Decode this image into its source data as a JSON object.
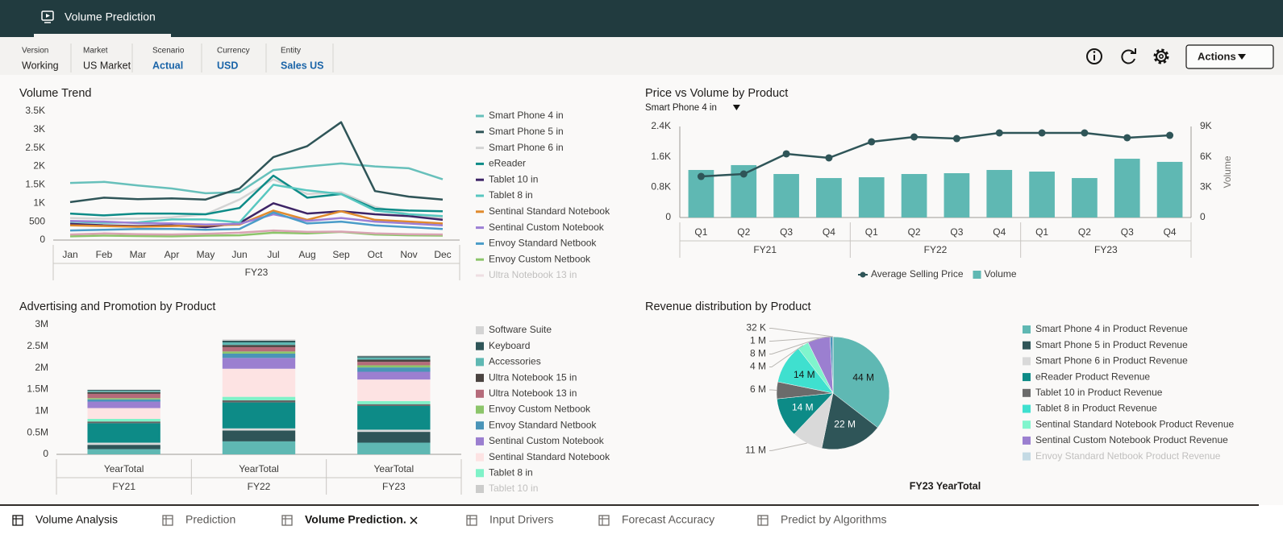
{
  "header": {
    "title": "Volume Prediction"
  },
  "pov": [
    {
      "label": "Version",
      "value": "Working"
    },
    {
      "label": "Market",
      "value": "US Market"
    },
    {
      "label": "Scenario",
      "value": "Actual"
    },
    {
      "label": "Currency",
      "value": "USD"
    },
    {
      "label": "Entity",
      "value": "Sales US"
    }
  ],
  "toolbar": {
    "actions": "Actions"
  },
  "chart_data": [
    {
      "type": "line",
      "title": "Volume Trend",
      "categories": [
        "Jan",
        "Feb",
        "Mar",
        "Apr",
        "May",
        "Jun",
        "Jul",
        "Aug",
        "Sep",
        "Oct",
        "Nov",
        "Dec"
      ],
      "x_groups": [
        "FY23"
      ],
      "ylim": [
        0,
        3500
      ],
      "yticks": [
        0,
        500,
        {
          "value": 1000,
          "label": "1K"
        },
        {
          "value": 1500,
          "label": "1.5K"
        },
        {
          "value": 2000,
          "label": "2K"
        },
        {
          "value": 2500,
          "label": "2.5K"
        },
        {
          "value": 3000,
          "label": "3K"
        },
        {
          "value": 3500,
          "label": "3.5K"
        }
      ],
      "grid": false,
      "series": [
        {
          "name": "Smart Phone 4 in",
          "color": "#67c0bb",
          "values": [
            1550,
            1580,
            1480,
            1400,
            1270,
            1300,
            1900,
            2000,
            2080,
            2000,
            1950,
            1650
          ]
        },
        {
          "name": "Smart Phone 5 in",
          "color": "#2f5558",
          "values": [
            1030,
            1150,
            1110,
            1130,
            1100,
            1400,
            2250,
            2550,
            3200,
            1330,
            1180,
            1100
          ]
        },
        {
          "name": "Smart Phone 6 in",
          "color": "#d4d4d4",
          "values": [
            600,
            580,
            580,
            620,
            700,
            1100,
            1650,
            1250,
            1300,
            900,
            700,
            600
          ]
        },
        {
          "name": "eReader",
          "color": "#0d8b87",
          "values": [
            720,
            670,
            720,
            720,
            700,
            870,
            1750,
            1150,
            1250,
            850,
            800,
            780
          ]
        },
        {
          "name": "Tablet 10 in",
          "color": "#3d2466",
          "values": [
            440,
            400,
            380,
            400,
            350,
            460,
            1000,
            720,
            780,
            700,
            650,
            550
          ]
        },
        {
          "name": "Tablet 8 in",
          "color": "#58c7c0",
          "values": [
            500,
            470,
            480,
            560,
            560,
            480,
            1500,
            1350,
            1250,
            800,
            700,
            650
          ]
        },
        {
          "name": "Sentinal Standard Notebook",
          "color": "#e08a2c",
          "values": [
            400,
            380,
            360,
            380,
            400,
            420,
            800,
            550,
            780,
            550,
            500,
            450
          ]
        },
        {
          "name": "Sentinal Custom Notebook",
          "color": "#9d7fd5",
          "values": [
            520,
            500,
            460,
            450,
            420,
            440,
            700,
            520,
            600,
            500,
            450,
            400
          ]
        },
        {
          "name": "Envoy Standard Netbook",
          "color": "#4a9cc8",
          "values": [
            260,
            280,
            300,
            300,
            280,
            300,
            750,
            450,
            500,
            400,
            350,
            300
          ]
        },
        {
          "name": "Envoy Custom Netbook",
          "color": "#8cc56a",
          "values": [
            100,
            120,
            110,
            100,
            120,
            130,
            200,
            180,
            220,
            150,
            130,
            120
          ]
        },
        {
          "name": "Ultra Notebook 13 in",
          "color": "#d9a3b3",
          "values": [
            150,
            180,
            160,
            150,
            170,
            200,
            260,
            220,
            230,
            180,
            160,
            150
          ]
        }
      ]
    },
    {
      "type": "combo",
      "title": "Price vs Volume by Product",
      "subtitle": "Smart Phone 4 in",
      "categories": [
        "Q1",
        "Q2",
        "Q3",
        "Q4",
        "Q1",
        "Q2",
        "Q3",
        "Q4",
        "Q1",
        "Q2",
        "Q3",
        "Q4"
      ],
      "x_groups": [
        "FY21",
        "FY22",
        "FY23"
      ],
      "ylim": [
        0,
        2400
      ],
      "yticks": [
        0,
        {
          "value": 800,
          "label": "0.8K"
        },
        {
          "value": 1600,
          "label": "1.6K"
        },
        {
          "value": 2400,
          "label": "2.4K"
        }
      ],
      "y2lim": [
        0,
        9000
      ],
      "y2ticks": [
        0,
        {
          "value": 3000,
          "label": "3K"
        },
        {
          "value": 6000,
          "label": "6K"
        },
        {
          "value": 9000,
          "label": "9K"
        }
      ],
      "y2label": "Volume",
      "grid": false,
      "series": [
        {
          "name": "Average Selling Price",
          "type": "line",
          "color": "#2f5558",
          "values": [
            1083,
            1147,
            1678,
            1572,
            1996,
            2124,
            2081,
            2230,
            2230,
            2230,
            2103,
            2166
          ]
        },
        {
          "name": "Volume",
          "type": "bar",
          "axis": "y2",
          "color": "#5fb8b3",
          "values": [
            4700,
            5180,
            4300,
            3900,
            3980,
            4300,
            4380,
            4700,
            4540,
            3900,
            5810,
            5500
          ]
        }
      ]
    },
    {
      "type": "bar",
      "stacked": true,
      "title": "Advertising and Promotion by Product",
      "categories": [
        "YearTotal",
        "YearTotal",
        "YearTotal"
      ],
      "x_groups": [
        "FY21",
        "FY22",
        "FY23"
      ],
      "ylim": [
        0,
        3000000
      ],
      "yticks": [
        0,
        {
          "value": 500000,
          "label": "0.5M"
        },
        {
          "value": 1000000,
          "label": "1M"
        },
        {
          "value": 1500000,
          "label": "1.5M"
        },
        {
          "value": 2000000,
          "label": "2M"
        },
        {
          "value": 2500000,
          "label": "2.5M"
        },
        {
          "value": 3000000,
          "label": "3M"
        }
      ],
      "grid": false,
      "series": [
        {
          "name": "Software Suite",
          "color": "#d4d4d4",
          "values": [
            10000,
            30000,
            20000
          ]
        },
        {
          "name": "Keyboard",
          "color": "#2f5558",
          "values": [
            20000,
            40000,
            30000
          ]
        },
        {
          "name": "Accessories",
          "color": "#5fb8b3",
          "values": [
            30000,
            60000,
            50000
          ]
        },
        {
          "name": "Ultra Notebook 15 in",
          "color": "#4a4340",
          "values": [
            40000,
            50000,
            50000
          ]
        },
        {
          "name": "Ultra Notebook 13 in",
          "color": "#b56b7a",
          "values": [
            100000,
            100000,
            80000
          ]
        },
        {
          "name": "Envoy Custom Netbook",
          "color": "#8cc56a",
          "values": [
            30000,
            50000,
            50000
          ]
        },
        {
          "name": "Envoy Standard Netbook",
          "color": "#4a94b8",
          "values": [
            50000,
            100000,
            100000
          ]
        },
        {
          "name": "Sentinal Custom Notebook",
          "color": "#9b7fd0",
          "values": [
            150000,
            250000,
            180000
          ]
        },
        {
          "name": "Sentinal Standard Notebook",
          "color": "#fde3e3",
          "values": [
            250000,
            650000,
            500000
          ]
        },
        {
          "name": "Tablet 8 in",
          "color": "#7ff2c8",
          "values": [
            60000,
            80000,
            70000
          ]
        },
        {
          "name": "Tablet 10 in",
          "color": "#666666",
          "values": [
            40000,
            50000,
            40000
          ]
        },
        {
          "color": "#0d8b87",
          "values": [
            450000,
            600000,
            550000
          ]
        },
        {
          "color": "#d9d9d9",
          "values": [
            50000,
            50000,
            50000
          ]
        },
        {
          "color": "#2f5558",
          "values": [
            100000,
            250000,
            250000
          ]
        },
        {
          "color": "#5fb8b3",
          "values": [
            120000,
            300000,
            270000
          ]
        }
      ]
    },
    {
      "type": "pie",
      "title": "Revenue distribution by Product",
      "caption": "FY23 YearTotal",
      "categories": [
        "Smart Phone 4 in Product Revenue",
        "Smart Phone 5 in Product Revenue",
        "Smart Phone 6 in Product Revenue",
        "eReader Product Revenue",
        "Tablet 10 in Product Revenue",
        "Tablet 8 in Product Revenue",
        "Sentinal Standard Notebook Product Revenue",
        "Sentinal Custom Notebook Product Revenue",
        "Envoy Standard Netbook Product Revenue",
        null
      ],
      "values": [
        44,
        22,
        11,
        14,
        6,
        14,
        4,
        8,
        1,
        0.032
      ],
      "value_labels": [
        "44 M",
        "22 M",
        "11 M",
        "14 M",
        "6 M",
        "14 M",
        "4 M",
        "8 M",
        "1 M",
        "32 K"
      ],
      "colors": [
        "#5fb8b3",
        "#2f5558",
        "#d9d9d9",
        "#0d8b87",
        "#6b6b6b",
        "#3fe0cf",
        "#80f5cd",
        "#9b7fd0",
        "#4a94b8",
        "#8cc56a"
      ]
    }
  ],
  "tabs": [
    "Volume Analysis",
    "Prediction",
    "Volume Prediction.",
    "Input Drivers",
    "Forecast Accuracy",
    "Predict by Algorithms"
  ]
}
